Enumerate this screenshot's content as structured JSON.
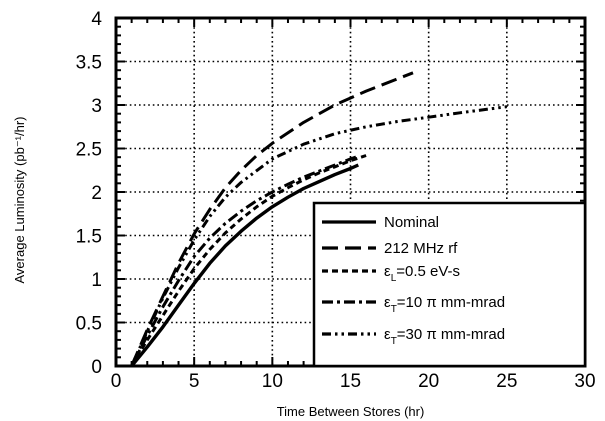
{
  "chart_data": {
    "type": "line",
    "title": "",
    "xlabel": "Time Between Stores (hr)",
    "ylabel": "Average Luminosity (pb⁻¹/hr)",
    "xlim": [
      0,
      30
    ],
    "ylim": [
      0,
      4
    ],
    "x_ticks": [
      0,
      5,
      10,
      15,
      20,
      25,
      30
    ],
    "x_tick_labels": [
      "0",
      "5",
      "10",
      "15",
      "20",
      "25",
      "30"
    ],
    "y_ticks": [
      0,
      0.5,
      1,
      1.5,
      2,
      2.5,
      3,
      3.5,
      4
    ],
    "y_tick_labels": [
      "0",
      "0.5",
      "1",
      "1.5",
      "2",
      "2.5",
      "3",
      "3.5",
      "4"
    ],
    "grid": true,
    "legend_position": "bottom-right",
    "series": [
      {
        "name": "Nominal",
        "style": "solid",
        "color": "#000000",
        "x": [
          1.0,
          2.0,
          3.0,
          4.0,
          5.0,
          6.0,
          7.0,
          8.0,
          9.0,
          10.0,
          11.0,
          12.0,
          13.0,
          14.0,
          15.0,
          15.5
        ],
        "y": [
          0.0,
          0.22,
          0.45,
          0.7,
          0.95,
          1.18,
          1.38,
          1.55,
          1.7,
          1.83,
          1.94,
          2.04,
          2.12,
          2.2,
          2.27,
          2.31
        ]
      },
      {
        "name": "212 MHz rf",
        "style": "long-dash",
        "color": "#000000",
        "x": [
          1.0,
          2.0,
          3.0,
          4.0,
          5.0,
          6.0,
          7.0,
          8.0,
          9.0,
          10.0,
          12.0,
          14.0,
          16.0,
          18.0,
          19.0
        ],
        "y": [
          0.0,
          0.42,
          0.8,
          1.18,
          1.52,
          1.8,
          2.05,
          2.25,
          2.42,
          2.56,
          2.8,
          3.0,
          3.16,
          3.3,
          3.37
        ]
      },
      {
        "name": "εL=0.5 eV-s",
        "label_main": "ε",
        "label_sub": "L",
        "label_rest": "=0.5  eV-s",
        "style": "short-dash",
        "color": "#000000",
        "x": [
          1.0,
          2.0,
          3.0,
          4.0,
          5.0,
          6.0,
          7.0,
          8.0,
          9.0,
          10.0,
          11.0,
          12.0,
          13.0,
          14.0,
          15.0,
          16.0
        ],
        "y": [
          0.0,
          0.3,
          0.58,
          0.86,
          1.12,
          1.34,
          1.53,
          1.69,
          1.83,
          1.95,
          2.05,
          2.14,
          2.22,
          2.29,
          2.36,
          2.42
        ]
      },
      {
        "name": "εT=10 π mm-mrad",
        "label_main": "ε",
        "label_sub": "T",
        "label_rest": "=10  π  mm-mrad",
        "style": "dash-dot",
        "color": "#000000",
        "x": [
          1.0,
          2.0,
          3.0,
          4.0,
          5.0,
          6.0,
          7.0,
          8.0,
          9.0,
          10.0,
          11.0,
          12.0,
          13.0,
          14.0,
          15.0,
          15.5
        ],
        "y": [
          0.0,
          0.35,
          0.68,
          0.98,
          1.26,
          1.47,
          1.64,
          1.78,
          1.9,
          2.0,
          2.09,
          2.17,
          2.24,
          2.31,
          2.38,
          2.41
        ]
      },
      {
        "name": "εT=30 π mm-mrad",
        "label_main": "ε",
        "label_sub": "T",
        "label_rest": "=30  π  mm-mrad",
        "style": "dash-dot-dot",
        "color": "#000000",
        "x": [
          1.0,
          2.0,
          3.0,
          4.0,
          5.0,
          6.0,
          7.0,
          8.0,
          10.0,
          12.0,
          14.0,
          16.0,
          18.0,
          20.0,
          22.0,
          25.0
        ],
        "y": [
          0.0,
          0.4,
          0.78,
          1.13,
          1.45,
          1.72,
          1.94,
          2.11,
          2.38,
          2.55,
          2.67,
          2.75,
          2.81,
          2.86,
          2.91,
          2.98
        ]
      }
    ]
  }
}
